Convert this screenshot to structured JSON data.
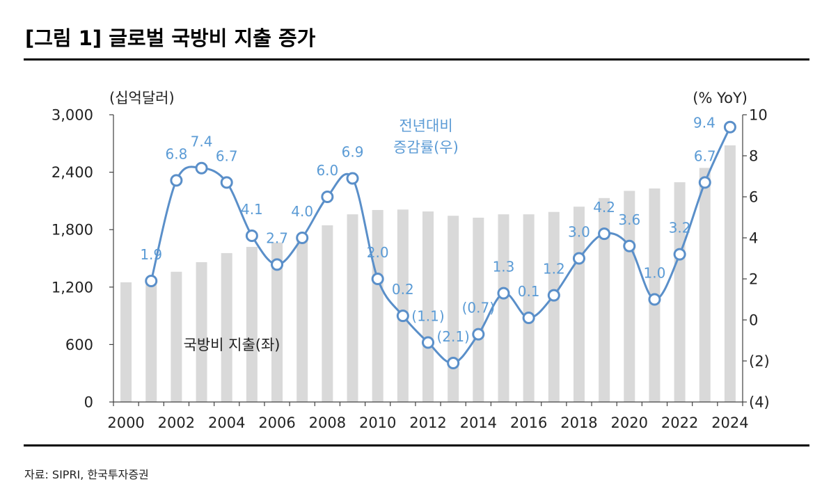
{
  "title": "[그림 1] 글로벌 국방비 지출 증가",
  "source": "자료: SIPRI, 한국투자증권",
  "colors": {
    "bar": "#d9d9d9",
    "line": "#5a8fc9",
    "marker_fill": "#ffffff",
    "data_label": "#5b9bd5",
    "axis": "#404040",
    "text": "#222222"
  },
  "chart_data": {
    "type": "bar",
    "grid": false,
    "x": [
      2000,
      2001,
      2002,
      2003,
      2004,
      2005,
      2006,
      2007,
      2008,
      2009,
      2010,
      2011,
      2012,
      2013,
      2014,
      2015,
      2016,
      2017,
      2018,
      2019,
      2020,
      2021,
      2022,
      2023,
      2024
    ],
    "x_tick_labels": [
      "2000",
      "2002",
      "2004",
      "2006",
      "2008",
      "2010",
      "2012",
      "2014",
      "2016",
      "2018",
      "2020",
      "2022",
      "2024"
    ],
    "y_left": {
      "title": "(십억달러)",
      "range": [
        0,
        3000
      ],
      "ticks": [
        0,
        600,
        1200,
        1800,
        2400,
        3000
      ],
      "tick_labels": [
        "0",
        "600",
        "1,200",
        "1,800",
        "2,400",
        "3,000"
      ]
    },
    "y_right": {
      "title": "(% YoY)",
      "range": [
        -4,
        10
      ],
      "ticks": [
        -4,
        -2,
        0,
        2,
        4,
        6,
        8,
        10
      ],
      "tick_labels": [
        "(4)",
        "(2)",
        "0",
        "2",
        "4",
        "6",
        "8",
        "10"
      ]
    },
    "series": [
      {
        "name": "국방비 지출(좌)",
        "type": "bar",
        "axis": "left",
        "values": [
          1250,
          1285,
          1360,
          1460,
          1555,
          1620,
          1665,
          1745,
          1845,
          1960,
          2005,
          2010,
          1990,
          1945,
          1925,
          1960,
          1960,
          1985,
          2040,
          2130,
          2205,
          2230,
          2295,
          2445,
          2680
        ]
      },
      {
        "name": "전년대비\n증감률(우)",
        "type": "line",
        "axis": "right",
        "smooth": true,
        "markers": true,
        "values": [
          null,
          1.9,
          6.8,
          7.4,
          6.7,
          4.1,
          2.7,
          4.0,
          6.0,
          6.9,
          2.0,
          0.2,
          -1.1,
          -2.1,
          -0.7,
          1.3,
          0.1,
          1.2,
          3.0,
          4.2,
          3.6,
          1.0,
          3.2,
          6.7,
          9.4
        ],
        "labels": [
          null,
          "1.9",
          "6.8",
          "7.4",
          "6.7",
          "4.1",
          "2.7",
          "4.0",
          "6.0",
          "6.9",
          "2.0",
          "0.2",
          "(1.1)",
          "(2.1)",
          "(0.7)",
          "1.3",
          "0.1",
          "1.2",
          "3.0",
          "4.2",
          "3.6",
          "1.0",
          "3.2",
          "6.7",
          "9.4"
        ]
      }
    ]
  }
}
